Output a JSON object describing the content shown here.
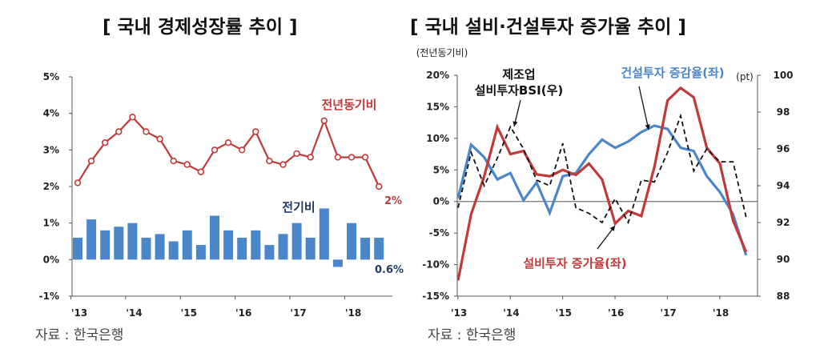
{
  "left": {
    "title": "[ 국내 경제성장률 추이 ]",
    "source": "자료 : 한국은행"
  },
  "right": {
    "title": "[ 국내 설비·건설투자 증가율 추이 ]",
    "source": "자료 : 한국은행"
  },
  "colors": {
    "red": "#c0393b",
    "blue": "#4a86c8",
    "black": "#111111",
    "axis_label": "#1f3864"
  },
  "chart_data": [
    {
      "type": "bar+line",
      "title": "[ 국내 경제성장률 추이 ]",
      "ylim": [
        -1,
        5
      ],
      "yticks": [
        -1,
        0,
        1,
        2,
        3,
        4,
        5
      ],
      "ytick_labels": [
        "-1%",
        "0%",
        "1%",
        "2%",
        "3%",
        "4%",
        "5%"
      ],
      "x_labels": [
        "'13",
        "'14",
        "'15",
        "'16",
        "'17",
        "'18"
      ],
      "periods": 23,
      "grid": false,
      "series": [
        {
          "name": "전년동기비",
          "kind": "line",
          "color": "#c0393b",
          "values": [
            2.1,
            2.7,
            3.2,
            3.5,
            3.9,
            3.5,
            3.3,
            2.7,
            2.6,
            2.4,
            3.0,
            3.2,
            3.0,
            3.5,
            2.7,
            2.6,
            2.9,
            2.8,
            3.8,
            2.8,
            2.8,
            2.8,
            2.0
          ]
        },
        {
          "name": "전기비",
          "kind": "bar",
          "color": "#4a86c8",
          "values": [
            0.6,
            1.1,
            0.8,
            0.9,
            1.0,
            0.6,
            0.7,
            0.5,
            0.8,
            0.4,
            1.2,
            0.8,
            0.6,
            0.8,
            0.4,
            0.7,
            1.0,
            0.6,
            1.4,
            -0.2,
            1.0,
            0.6,
            0.6
          ]
        }
      ],
      "annotations": {
        "line_last": "2%",
        "bar_last": "0.6%"
      }
    },
    {
      "type": "line",
      "title": "[ 국내 설비·건설투자 증가율 추이 ]",
      "y_left_label": "(전년동기비)",
      "y_right_label": "(pt)",
      "ylim_left": [
        -15,
        20
      ],
      "yticks_left_labels": [
        "-15%",
        "-10%",
        "-5%",
        "0%",
        "5%",
        "10%",
        "15%",
        "20%"
      ],
      "ylim_right": [
        88,
        100
      ],
      "yticks_right_labels": [
        "88",
        "90",
        "92",
        "94",
        "96",
        "98",
        "100"
      ],
      "x_labels": [
        "'13",
        "'14",
        "'15",
        "'16",
        "'17",
        "'18"
      ],
      "periods": 23,
      "grid": false,
      "series": [
        {
          "name": "건설투자 증감율(좌)",
          "axis": "left",
          "style": "solid",
          "color": "#4a86c8",
          "values": [
            0.5,
            9.0,
            7.0,
            3.5,
            4.5,
            0.2,
            3.0,
            -1.8,
            4.0,
            4.5,
            7.5,
            9.8,
            8.5,
            9.5,
            11.0,
            12.0,
            11.5,
            8.5,
            8.0,
            4.0,
            1.5,
            -2.0,
            -8.5
          ]
        },
        {
          "name": "설비투자 증가율(좌)",
          "axis": "left",
          "style": "solid",
          "color": "#c0393b",
          "values": [
            -12.5,
            -2.0,
            4.0,
            11.8,
            7.5,
            8.0,
            4.3,
            4.0,
            5.0,
            4.2,
            6.0,
            3.5,
            -3.5,
            -1.5,
            -2.3,
            5.5,
            16.0,
            18.0,
            16.5,
            8.5,
            6.0,
            -3.0,
            -8.0
          ]
        },
        {
          "name": "제조업 설비투자BSI(우)",
          "axis": "right",
          "style": "dashed",
          "color": "#111111",
          "values": [
            92.8,
            95.8,
            94.0,
            95.5,
            97.2,
            96.0,
            94.3,
            94.0,
            96.3,
            92.8,
            92.5,
            92.0,
            93.3,
            92.0,
            94.3,
            94.2,
            95.8,
            97.8,
            94.8,
            96.0,
            95.3,
            95.3,
            92.3
          ]
        }
      ],
      "labels": {
        "construction": "건설투자 증감율(좌)",
        "facility": "설비투자 증가율(좌)",
        "bsi_line1": "제조업",
        "bsi_line2": "설비투자BSI(우)"
      }
    }
  ]
}
